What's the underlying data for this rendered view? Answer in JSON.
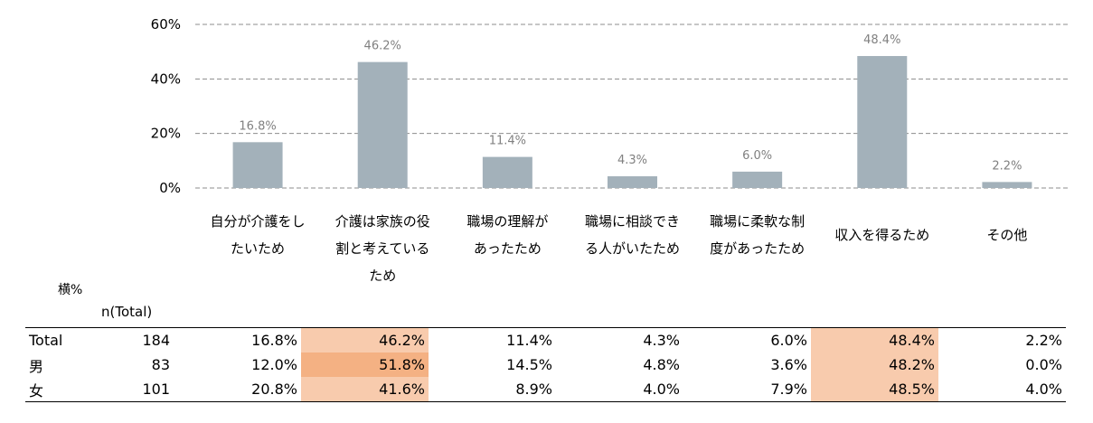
{
  "chart_data": {
    "type": "bar",
    "categories": [
      [
        "自分が介護をし",
        "たいため"
      ],
      [
        "介護は家族の役",
        "割と考えている",
        "ため"
      ],
      [
        "職場の理解が",
        "あったため"
      ],
      [
        "職場に相談でき",
        "る人がいたため"
      ],
      [
        "職場に柔軟な制",
        "度があったため"
      ],
      [
        "収入を得るため"
      ],
      [
        "その他"
      ]
    ],
    "values": [
      16.8,
      46.2,
      11.4,
      4.3,
      6.0,
      48.4,
      2.2
    ],
    "data_labels": [
      "16.8%",
      "46.2%",
      "11.4%",
      "4.3%",
      "6.0%",
      "48.4%",
      "2.2%"
    ],
    "ylim": [
      0,
      60
    ],
    "yticks": [
      "0%",
      "20%",
      "40%",
      "60%"
    ],
    "grid": true,
    "bar_color": "#a3b1ba"
  },
  "table": {
    "unit_label": "横%",
    "n_header": "n(Total)",
    "rows": [
      {
        "name": "Total",
        "n": "184",
        "cells": [
          "16.8%",
          "46.2%",
          "11.4%",
          "4.3%",
          "6.0%",
          "48.4%",
          "2.2%"
        ]
      },
      {
        "name": "男",
        "n": "83",
        "cells": [
          "12.0%",
          "51.8%",
          "14.5%",
          "4.8%",
          "3.6%",
          "48.2%",
          "0.0%"
        ]
      },
      {
        "name": "女",
        "n": "101",
        "cells": [
          "20.8%",
          "41.6%",
          "8.9%",
          "4.0%",
          "7.9%",
          "48.5%",
          "4.0%"
        ]
      }
    ],
    "highlights": [
      {
        "row": 0,
        "col": 1,
        "color": "#f8cbad"
      },
      {
        "row": 0,
        "col": 5,
        "color": "#f8cbad"
      },
      {
        "row": 1,
        "col": 1,
        "color": "#f4b183"
      },
      {
        "row": 1,
        "col": 5,
        "color": "#f8cbad"
      },
      {
        "row": 2,
        "col": 1,
        "color": "#f8cbad"
      },
      {
        "row": 2,
        "col": 5,
        "color": "#f8cbad"
      }
    ]
  }
}
